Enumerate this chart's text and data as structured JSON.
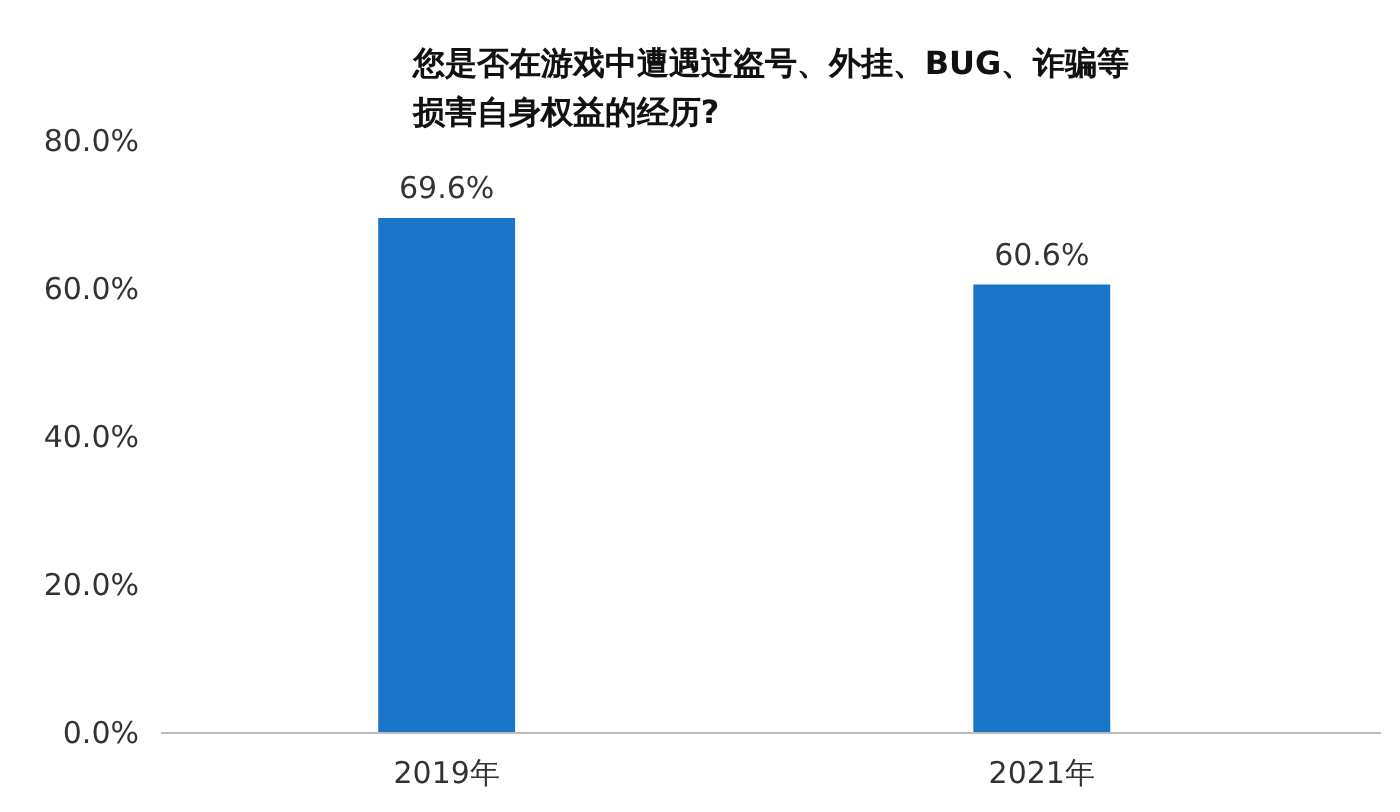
{
  "chart_data": {
    "type": "bar",
    "title": "您是否在游戏中遭遇过盗号、外挂、BUG、诈骗等损害自身权益的经历?",
    "categories": [
      "2019年",
      "2021年"
    ],
    "values": [
      69.6,
      60.6
    ],
    "value_labels": [
      "69.6%",
      "60.6%"
    ],
    "color": "#1a75c9",
    "ylim": [
      0,
      80
    ],
    "yticks": [
      {
        "value": 0,
        "label": "0.0%"
      },
      {
        "value": 20,
        "label": "20.0%"
      },
      {
        "value": 40,
        "label": "40.0%"
      },
      {
        "value": 60,
        "label": "60.0%"
      },
      {
        "value": 80,
        "label": "80.0%"
      }
    ],
    "grid": false
  }
}
